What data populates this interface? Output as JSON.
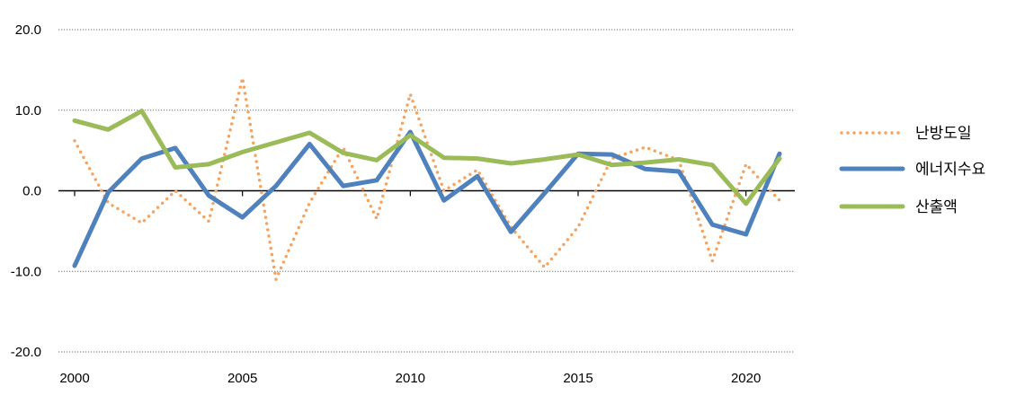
{
  "chart_data": {
    "type": "line",
    "title": "",
    "xlabel": "",
    "ylabel": "",
    "xlim": [
      2000,
      2021
    ],
    "ylim": [
      -20,
      20
    ],
    "x_ticks": [
      2000,
      2005,
      2010,
      2015,
      2020
    ],
    "x_tick_labels": [
      "2000",
      "2005",
      "2010",
      "2015",
      "2020"
    ],
    "y_ticks": [
      20,
      10,
      0,
      -10,
      -20
    ],
    "y_tick_labels": [
      "20.0",
      "10.0",
      "0.0",
      "-10.0",
      "-20.0"
    ],
    "grid": "horizontal dotted",
    "legend_position": "right",
    "x": [
      2000,
      2001,
      2002,
      2003,
      2004,
      2005,
      2006,
      2007,
      2008,
      2009,
      2010,
      2011,
      2012,
      2013,
      2014,
      2015,
      2016,
      2017,
      2018,
      2019,
      2020,
      2021
    ],
    "series": [
      {
        "name": "난방도일",
        "color": "#F4A460",
        "style": "dotted",
        "values": [
          6.2,
          -1.5,
          -4.0,
          0.0,
          -3.8,
          14.0,
          -11.0,
          -1.5,
          5.4,
          -3.5,
          12.0,
          0.0,
          2.6,
          -4.5,
          -9.5,
          -4.5,
          4.0,
          5.4,
          3.8,
          -8.7,
          3.3,
          -1.2
        ]
      },
      {
        "name": "에너지수요",
        "color": "#4F81BD",
        "style": "solid",
        "values": [
          -9.3,
          -0.2,
          4.0,
          5.3,
          -0.6,
          -3.3,
          0.6,
          5.8,
          0.6,
          1.3,
          7.3,
          -1.2,
          1.8,
          -5.1,
          -0.3,
          4.6,
          4.5,
          2.7,
          2.4,
          -4.2,
          -5.4,
          4.6
        ]
      },
      {
        "name": "산출액",
        "color": "#9BBB59",
        "style": "solid",
        "values": [
          8.7,
          7.6,
          9.9,
          2.9,
          3.3,
          4.8,
          6.0,
          7.2,
          4.7,
          3.8,
          6.9,
          4.1,
          4.0,
          3.4,
          3.9,
          4.5,
          3.2,
          3.5,
          3.9,
          3.2,
          -1.6,
          4.0
        ]
      }
    ]
  }
}
